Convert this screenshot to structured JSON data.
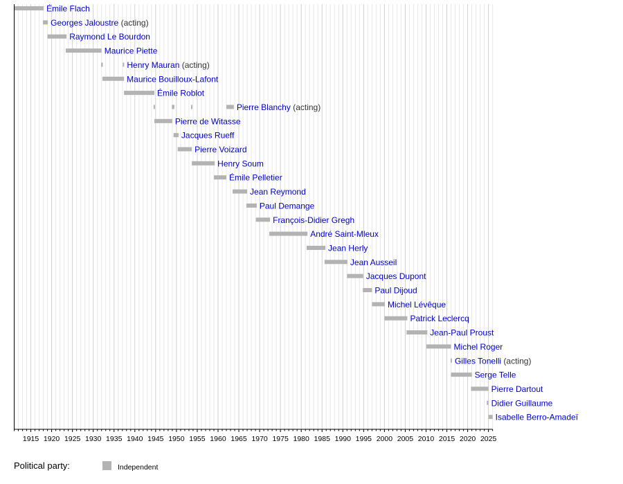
{
  "chart_data": {
    "type": "timeline",
    "title": "",
    "xlim": [
      1911,
      2026
    ],
    "x_ticks": [
      1915,
      1920,
      1925,
      1930,
      1935,
      1940,
      1945,
      1950,
      1955,
      1960,
      1965,
      1970,
      1975,
      1980,
      1985,
      1990,
      1995,
      2000,
      2005,
      2010,
      2015,
      2020,
      2025
    ],
    "grid": true,
    "bar_color": "#b3b3b3",
    "label_color": "#0000cc",
    "note_color": "#333333",
    "rows": [
      {
        "name": "Émile Flach",
        "note": "",
        "periods": [
          [
            1911,
            1918.1
          ]
        ]
      },
      {
        "name": "Georges Jaloustre",
        "note": "(acting)",
        "periods": [
          [
            1917.9,
            1919.1
          ]
        ]
      },
      {
        "name": "Raymond Le Bourdon",
        "note": "",
        "periods": [
          [
            1919,
            1923.6
          ]
        ]
      },
      {
        "name": "Maurice Piette",
        "note": "",
        "periods": [
          [
            1923.4,
            1932
          ]
        ]
      },
      {
        "name": "Henry Mauran",
        "note": "(acting)",
        "periods": [
          [
            1931.9,
            1932.3
          ],
          [
            1937.1,
            1937.4
          ]
        ]
      },
      {
        "name": "Maurice Bouilloux-Lafont",
        "note": "",
        "periods": [
          [
            1932.2,
            1937.4
          ]
        ]
      },
      {
        "name": "Émile Roblot",
        "note": "",
        "periods": [
          [
            1937.4,
            1944.7
          ]
        ]
      },
      {
        "name": "Pierre Blanchy",
        "note": "(acting)",
        "periods": [
          [
            1944.5,
            1944.8
          ],
          [
            1948.9,
            1949.5
          ],
          [
            1953.5,
            1953.8
          ],
          [
            1962,
            1963.8
          ]
        ]
      },
      {
        "name": "Pierre de Witasse",
        "note": "",
        "periods": [
          [
            1944.7,
            1949
          ]
        ]
      },
      {
        "name": "Jacques Rueff",
        "note": "",
        "periods": [
          [
            1949.3,
            1950.5
          ]
        ]
      },
      {
        "name": "Pierre Voizard",
        "note": "",
        "periods": [
          [
            1950.3,
            1953.7
          ]
        ]
      },
      {
        "name": "Henry Soum",
        "note": "",
        "periods": [
          [
            1953.7,
            1959.2
          ]
        ]
      },
      {
        "name": "Émile Pelletier",
        "note": "",
        "periods": [
          [
            1959,
            1962
          ]
        ]
      },
      {
        "name": "Jean Reymond",
        "note": "",
        "periods": [
          [
            1963.5,
            1967
          ]
        ]
      },
      {
        "name": "Paul Demange",
        "note": "",
        "periods": [
          [
            1966.8,
            1969.3
          ]
        ]
      },
      {
        "name": "François-Didier Gregh",
        "note": "",
        "periods": [
          [
            1969.1,
            1972.5
          ]
        ]
      },
      {
        "name": "André Saint-Mleux",
        "note": "",
        "periods": [
          [
            1972.3,
            1981.5
          ]
        ]
      },
      {
        "name": "Jean Herly",
        "note": "",
        "periods": [
          [
            1981.3,
            1985.8
          ]
        ]
      },
      {
        "name": "Jean Ausseil",
        "note": "",
        "periods": [
          [
            1985.6,
            1991.1
          ]
        ]
      },
      {
        "name": "Jacques Dupont",
        "note": "",
        "periods": [
          [
            1991,
            1994.9
          ]
        ]
      },
      {
        "name": "Paul Dijoud",
        "note": "",
        "periods": [
          [
            1994.8,
            1997
          ]
        ]
      },
      {
        "name": "Michel Lévêque",
        "note": "",
        "periods": [
          [
            1997,
            2000.1
          ]
        ]
      },
      {
        "name": "Patrick Leclercq",
        "note": "",
        "periods": [
          [
            2000,
            2005.5
          ]
        ]
      },
      {
        "name": "Jean-Paul Proust",
        "note": "",
        "periods": [
          [
            2005.3,
            2010.3
          ]
        ]
      },
      {
        "name": "Michel Roger",
        "note": "",
        "periods": [
          [
            2010.1,
            2016
          ]
        ]
      },
      {
        "name": "Gilles Tonelli",
        "note": "(acting)",
        "periods": [
          [
            2015.9,
            2016.2
          ]
        ]
      },
      {
        "name": "Serge Telle",
        "note": "",
        "periods": [
          [
            2016,
            2021
          ]
        ]
      },
      {
        "name": "Pierre Dartout",
        "note": "",
        "periods": [
          [
            2020.8,
            2025
          ]
        ]
      },
      {
        "name": "Didier Guillaume",
        "note": "",
        "periods": [
          [
            2024.6,
            2025
          ]
        ]
      },
      {
        "name": "Isabelle Berro-Amadeï",
        "note": "",
        "periods": [
          [
            2025,
            2026
          ]
        ]
      }
    ],
    "legend": {
      "title": "Political party:",
      "items": [
        {
          "label": "Independent",
          "color": "#b3b3b3"
        }
      ],
      "placement": "bottom-left"
    }
  }
}
